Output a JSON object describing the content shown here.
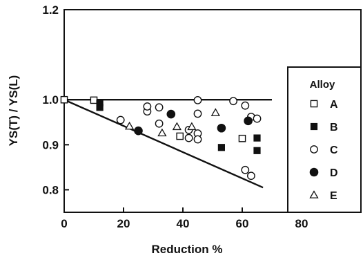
{
  "chart_data": {
    "type": "scatter",
    "xlabel": "Reduction %",
    "ylabel": "YS(T) / YS(L)",
    "xlim": [
      0,
      100
    ],
    "ylim": [
      0.75,
      1.2
    ],
    "xticks": [
      0,
      20,
      40,
      60,
      80
    ],
    "yticks": [
      0.8,
      0.9,
      1.0,
      1.2
    ],
    "xtick_labels": [
      "0",
      "20",
      "40",
      "60",
      "80"
    ],
    "ytick_labels": [
      "0.8",
      "0.9",
      "1.0",
      "1.2"
    ],
    "grid": false,
    "legend": {
      "title": "Alloy",
      "placement": "right"
    },
    "series": [
      {
        "name": "A",
        "marker": "open-square",
        "points": [
          [
            0,
            1.0
          ],
          [
            10,
            0.999
          ],
          [
            39,
            0.919
          ],
          [
            60,
            0.914
          ]
        ]
      },
      {
        "name": "B",
        "marker": "filled-square",
        "points": [
          [
            12,
            0.983
          ],
          [
            12,
            0.993
          ],
          [
            53,
            0.894
          ],
          [
            65,
            0.915
          ],
          [
            65,
            0.887
          ]
        ]
      },
      {
        "name": "C",
        "marker": "open-circle",
        "points": [
          [
            19,
            0.955
          ],
          [
            28,
            0.974
          ],
          [
            28,
            0.985
          ],
          [
            32,
            0.983
          ],
          [
            32,
            0.947
          ],
          [
            42,
            0.933
          ],
          [
            42,
            0.915
          ],
          [
            45,
            0.925
          ],
          [
            45,
            0.912
          ],
          [
            45,
            0.969
          ],
          [
            45,
            0.999
          ],
          [
            57,
            0.997
          ],
          [
            61,
            0.987
          ],
          [
            63,
            0.962
          ],
          [
            65,
            0.958
          ],
          [
            61,
            0.844
          ],
          [
            63,
            0.831
          ]
        ]
      },
      {
        "name": "D",
        "marker": "filled-circle",
        "points": [
          [
            25,
            0.931
          ],
          [
            36,
            0.968
          ],
          [
            53,
            0.937
          ],
          [
            62,
            0.953
          ]
        ]
      },
      {
        "name": "E",
        "marker": "open-triangle",
        "points": [
          [
            22,
            0.941
          ],
          [
            33,
            0.926
          ],
          [
            38,
            0.94
          ],
          [
            43,
            0.94
          ],
          [
            51,
            0.971
          ]
        ]
      }
    ],
    "lines": [
      {
        "points": [
          [
            0,
            1.0
          ],
          [
            70,
            1.0
          ]
        ]
      },
      {
        "points": [
          [
            0,
            1.0
          ],
          [
            67,
            0.805
          ]
        ]
      }
    ]
  }
}
